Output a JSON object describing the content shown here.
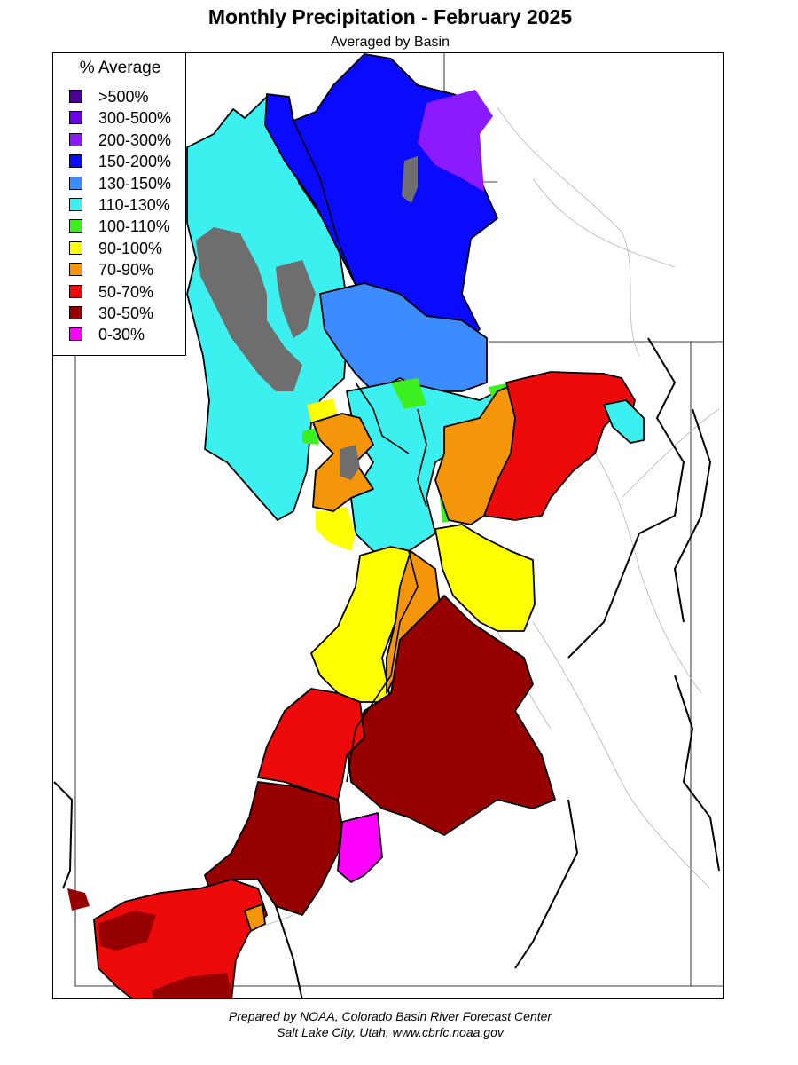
{
  "title": "Monthly Precipitation - February 2025",
  "subtitle": "Averaged by Basin",
  "legend": {
    "title": "% Average",
    "items": [
      {
        "label": ">500%",
        "color": "#4b0096"
      },
      {
        "label": "300-500%",
        "color": "#6a00e8"
      },
      {
        "label": "200-300%",
        "color": "#8c1aff"
      },
      {
        "label": "150-200%",
        "color": "#0a0aff"
      },
      {
        "label": "130-150%",
        "color": "#3c8cff"
      },
      {
        "label": "110-130%",
        "color": "#3cf0f0"
      },
      {
        "label": "100-110%",
        "color": "#3cf01e"
      },
      {
        "label": "90-100%",
        "color": "#ffff00"
      },
      {
        "label": "70-90%",
        "color": "#f5960a"
      },
      {
        "label": "50-70%",
        "color": "#ec0a0a"
      },
      {
        "label": "30-50%",
        "color": "#960000"
      },
      {
        "label": "0-30%",
        "color": "#ff00ff"
      }
    ]
  },
  "colors": {
    "no_data": "#6e6e6e",
    "boundary": "#000000",
    "rivers": "#b4b4b4"
  },
  "footer": {
    "line1": "Prepared by NOAA, Colorado Basin River Forecast Center",
    "line2": "Salt Lake City, Utah, www.cbrfc.noaa.gov"
  }
}
